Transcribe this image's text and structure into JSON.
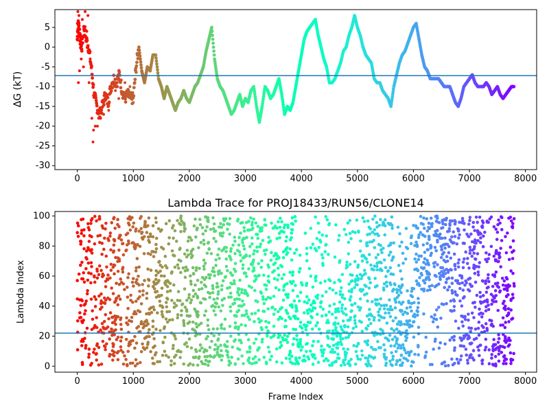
{
  "chart_data": [
    {
      "type": "scatter",
      "title": "",
      "xlabel": "",
      "ylabel": "ΔG (kT)",
      "xlim": [
        -400,
        8200
      ],
      "ylim": [
        -31,
        9.5
      ],
      "xticks": [
        0,
        1000,
        2000,
        3000,
        4000,
        5000,
        6000,
        7000,
        8000
      ],
      "yticks": [
        -30,
        -25,
        -20,
        -15,
        -10,
        -5,
        0,
        5
      ],
      "reference_line": {
        "y": -7.2,
        "color": "#1f77b4"
      },
      "color_map": "rainbow (red at frame 0 → violet at last frame)",
      "grid": false,
      "n_frames": 7800,
      "trace": [
        [
          0,
          2
        ],
        [
          20,
          6
        ],
        [
          40,
          4
        ],
        [
          60,
          1
        ],
        [
          80,
          0
        ],
        [
          120,
          5
        ],
        [
          160,
          2
        ],
        [
          200,
          0
        ],
        [
          250,
          -5
        ],
        [
          300,
          -12
        ],
        [
          350,
          -15
        ],
        [
          400,
          -17
        ],
        [
          450,
          -15
        ],
        [
          500,
          -12
        ],
        [
          550,
          -14
        ],
        [
          600,
          -10
        ],
        [
          650,
          -8
        ],
        [
          700,
          -9
        ],
        [
          750,
          -7
        ],
        [
          800,
          -11
        ],
        [
          850,
          -13
        ],
        [
          900,
          -12
        ],
        [
          950,
          -13
        ],
        [
          1000,
          -13
        ],
        [
          1050,
          -5
        ],
        [
          1100,
          0
        ],
        [
          1150,
          -6
        ],
        [
          1200,
          -9
        ],
        [
          1250,
          -5
        ],
        [
          1300,
          -6
        ],
        [
          1350,
          -2
        ],
        [
          1400,
          -2
        ],
        [
          1450,
          -8
        ],
        [
          1500,
          -10
        ],
        [
          1550,
          -13
        ],
        [
          1600,
          -10
        ],
        [
          1650,
          -12
        ],
        [
          1700,
          -14
        ],
        [
          1750,
          -16
        ],
        [
          1800,
          -14
        ],
        [
          1850,
          -13
        ],
        [
          1900,
          -11
        ],
        [
          1950,
          -13
        ],
        [
          2000,
          -14
        ],
        [
          2050,
          -12
        ],
        [
          2100,
          -10
        ],
        [
          2150,
          -9
        ],
        [
          2200,
          -7
        ],
        [
          2250,
          -5
        ],
        [
          2300,
          -1
        ],
        [
          2350,
          2
        ],
        [
          2400,
          5
        ],
        [
          2450,
          -3
        ],
        [
          2500,
          -8
        ],
        [
          2550,
          -10
        ],
        [
          2600,
          -11
        ],
        [
          2650,
          -13
        ],
        [
          2700,
          -15
        ],
        [
          2750,
          -17
        ],
        [
          2800,
          -16
        ],
        [
          2850,
          -14
        ],
        [
          2900,
          -12
        ],
        [
          2950,
          -15
        ],
        [
          3000,
          -13
        ],
        [
          3050,
          -14
        ],
        [
          3100,
          -11
        ],
        [
          3150,
          -10
        ],
        [
          3200,
          -15
        ],
        [
          3250,
          -19
        ],
        [
          3300,
          -15
        ],
        [
          3350,
          -10
        ],
        [
          3400,
          -11
        ],
        [
          3450,
          -13
        ],
        [
          3500,
          -12
        ],
        [
          3550,
          -10
        ],
        [
          3600,
          -8
        ],
        [
          3650,
          -12
        ],
        [
          3700,
          -17
        ],
        [
          3750,
          -15
        ],
        [
          3800,
          -16
        ],
        [
          3850,
          -14
        ],
        [
          3900,
          -10
        ],
        [
          3950,
          -6
        ],
        [
          4000,
          -2
        ],
        [
          4050,
          2
        ],
        [
          4100,
          4
        ],
        [
          4150,
          5
        ],
        [
          4200,
          6
        ],
        [
          4250,
          7
        ],
        [
          4300,
          3
        ],
        [
          4350,
          0
        ],
        [
          4400,
          -3
        ],
        [
          4450,
          -5
        ],
        [
          4500,
          -9
        ],
        [
          4550,
          -9
        ],
        [
          4600,
          -8
        ],
        [
          4650,
          -6
        ],
        [
          4700,
          -4
        ],
        [
          4750,
          -1
        ],
        [
          4800,
          0
        ],
        [
          4850,
          3
        ],
        [
          4900,
          5
        ],
        [
          4950,
          8
        ],
        [
          5000,
          5
        ],
        [
          5050,
          3
        ],
        [
          5100,
          0
        ],
        [
          5150,
          -2
        ],
        [
          5200,
          -3
        ],
        [
          5250,
          -4
        ],
        [
          5300,
          -8
        ],
        [
          5350,
          -9
        ],
        [
          5400,
          -9
        ],
        [
          5450,
          -11
        ],
        [
          5500,
          -12
        ],
        [
          5550,
          -13
        ],
        [
          5600,
          -15
        ],
        [
          5650,
          -10
        ],
        [
          5700,
          -7
        ],
        [
          5750,
          -4
        ],
        [
          5800,
          -2
        ],
        [
          5850,
          -1
        ],
        [
          5900,
          1
        ],
        [
          5950,
          3
        ],
        [
          6000,
          5
        ],
        [
          6050,
          6
        ],
        [
          6100,
          2
        ],
        [
          6150,
          -2
        ],
        [
          6200,
          -5
        ],
        [
          6250,
          -6
        ],
        [
          6300,
          -8
        ],
        [
          6350,
          -8
        ],
        [
          6400,
          -8
        ],
        [
          6450,
          -8
        ],
        [
          6500,
          -9
        ],
        [
          6550,
          -10
        ],
        [
          6600,
          -10
        ],
        [
          6650,
          -10
        ],
        [
          6700,
          -12
        ],
        [
          6750,
          -14
        ],
        [
          6800,
          -15
        ],
        [
          6850,
          -13
        ],
        [
          6900,
          -10
        ],
        [
          6950,
          -9
        ],
        [
          7000,
          -8
        ],
        [
          7050,
          -7
        ],
        [
          7100,
          -9
        ],
        [
          7150,
          -10
        ],
        [
          7200,
          -10
        ],
        [
          7250,
          -10
        ],
        [
          7300,
          -9
        ],
        [
          7350,
          -10
        ],
        [
          7400,
          -12
        ],
        [
          7450,
          -11
        ],
        [
          7500,
          -10
        ],
        [
          7550,
          -12
        ],
        [
          7600,
          -13
        ],
        [
          7650,
          -12
        ],
        [
          7700,
          -11
        ],
        [
          7750,
          -10
        ],
        [
          7800,
          -10
        ]
      ],
      "early_points": [
        [
          0,
          6
        ],
        [
          0,
          4
        ],
        [
          10,
          9
        ],
        [
          20,
          -9
        ],
        [
          30,
          8
        ],
        [
          40,
          -6
        ],
        [
          50,
          3
        ],
        [
          70,
          -3
        ],
        [
          90,
          7
        ],
        [
          110,
          -5
        ],
        [
          140,
          9
        ],
        [
          170,
          4
        ],
        [
          190,
          8
        ],
        [
          210,
          -9
        ],
        [
          230,
          -3
        ],
        [
          260,
          -18
        ],
        [
          280,
          -24
        ],
        [
          290,
          -21
        ],
        [
          320,
          -20
        ],
        [
          360,
          -20
        ],
        [
          380,
          -18
        ],
        [
          420,
          -16
        ],
        [
          470,
          -17
        ],
        [
          520,
          -13
        ],
        [
          560,
          -16
        ],
        [
          620,
          -9
        ],
        [
          680,
          -11
        ],
        [
          740,
          -13
        ],
        [
          850,
          -9
        ],
        [
          940,
          -10
        ],
        [
          1000,
          -14
        ]
      ]
    },
    {
      "type": "scatter",
      "title": "Lambda Trace for PROJ18433/RUN56/CLONE14",
      "xlabel": "Frame Index",
      "ylabel": "Lambda Index",
      "xlim": [
        -400,
        8200
      ],
      "ylim": [
        -4,
        103
      ],
      "xticks": [
        0,
        1000,
        2000,
        3000,
        4000,
        5000,
        6000,
        7000,
        8000
      ],
      "yticks": [
        0,
        20,
        40,
        60,
        80,
        100
      ],
      "reference_line": {
        "y": 22,
        "color": "#1f77b4"
      },
      "color_map": "rainbow (red at frame 0 → violet at last frame)",
      "grid": false,
      "n_frames": 7800,
      "n_points": 7800,
      "dense_bands": [
        {
          "x": [
            3850,
            4250
          ],
          "y": [
            0,
            45
          ]
        },
        {
          "x": [
            4550,
            4800
          ],
          "y": [
            0,
            40
          ]
        },
        {
          "x": [
            5650,
            6050
          ],
          "y": [
            0,
            55
          ]
        },
        {
          "x": [
            6100,
            6700
          ],
          "y": [
            50,
            100
          ]
        },
        {
          "x": [
            7600,
            7750
          ],
          "y": [
            0,
            60
          ]
        }
      ]
    }
  ]
}
